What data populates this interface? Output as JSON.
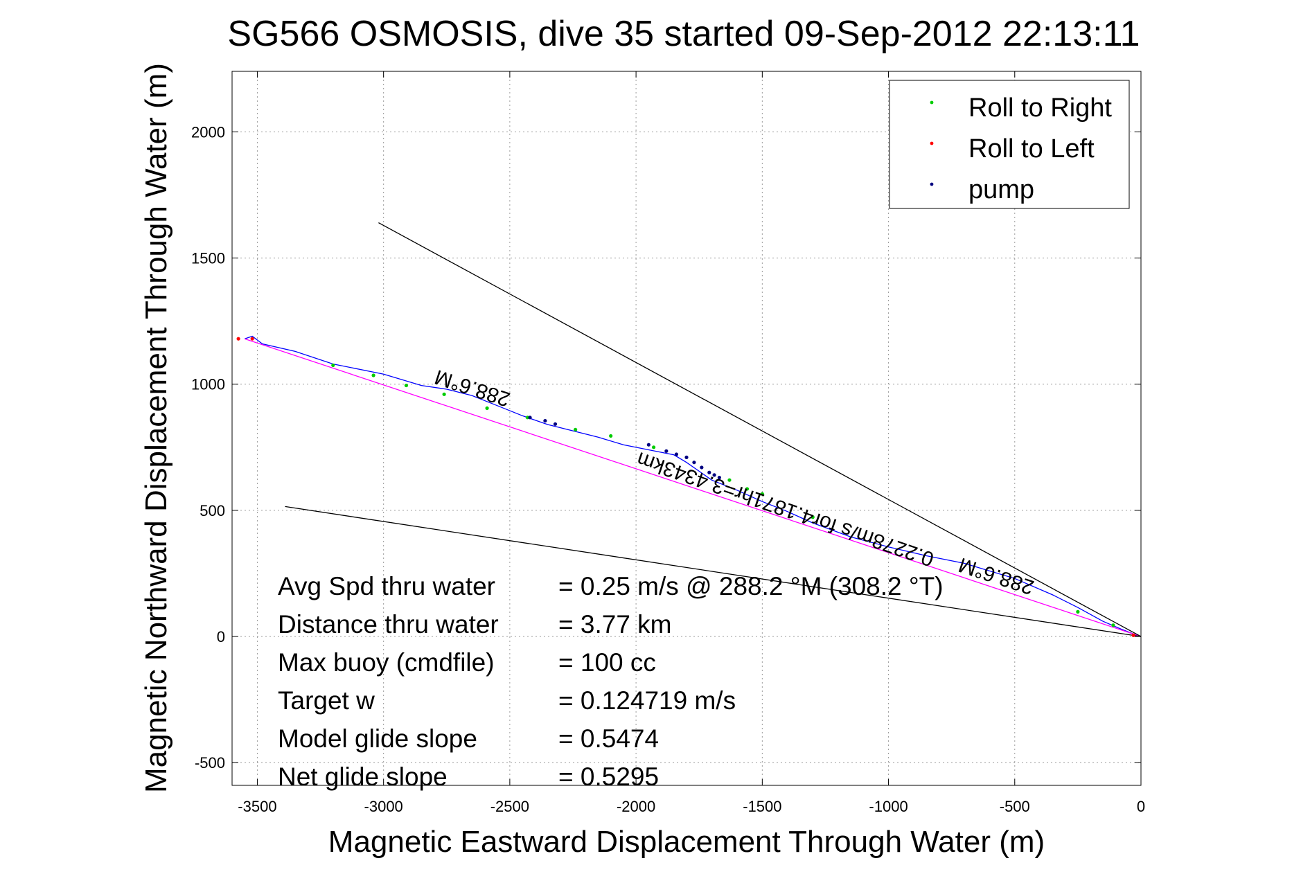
{
  "chart_data": {
    "type": "line",
    "title": "SG566 OSMOSIS, dive 35 started 09-Sep-2012 22:13:11",
    "xlabel": "Magnetic Eastward Displacement Through Water (m)",
    "ylabel": "Magnetic Northward Displacement Through Water (m)",
    "xlim": [
      -3600,
      0
    ],
    "ylim": [
      -590,
      2240
    ],
    "xticks": [
      -3500,
      -3000,
      -2500,
      -2000,
      -1500,
      -1000,
      -500,
      0
    ],
    "xtick_labels": [
      "-3500",
      "-3000",
      "-2500",
      "-2000",
      "-1500",
      "-1000",
      "-500",
      "0"
    ],
    "yticks": [
      -500,
      0,
      500,
      1000,
      1500,
      2000
    ],
    "ytick_labels": [
      "-500",
      "0",
      "500",
      "1000",
      "1500",
      "2000"
    ],
    "grid": true,
    "legend_position": "top-right",
    "legend": [
      {
        "label": "Roll to Right",
        "color": "#00cc00"
      },
      {
        "label": "Roll to Left",
        "color": "#ff0000"
      },
      {
        "label": "pump",
        "color": "#000080"
      }
    ],
    "series": [
      {
        "name": "track",
        "color": "#0000ff",
        "x": [
          -3550,
          -3520,
          -3480,
          -3350,
          -3200,
          -3000,
          -2850,
          -2750,
          -2650,
          -2550,
          -2450,
          -2350,
          -2250,
          -2150,
          -2050,
          -1950,
          -1850,
          -1800,
          -1750,
          -1700,
          -1600,
          -1500,
          -1400,
          -1300,
          -1150,
          -1000,
          -850,
          -700,
          -500,
          -350,
          -250,
          -150,
          -80,
          -30,
          0
        ],
        "y": [
          1180,
          1190,
          1160,
          1130,
          1080,
          1040,
          995,
          980,
          955,
          915,
          875,
          840,
          815,
          790,
          760,
          740,
          720,
          690,
          655,
          620,
          580,
          535,
          495,
          450,
          395,
          355,
          320,
          290,
          230,
          165,
          115,
          60,
          30,
          10,
          0
        ]
      },
      {
        "name": "straight-line",
        "color": "#ff00ff",
        "x": [
          -3550,
          0
        ],
        "y": [
          1180,
          0
        ]
      },
      {
        "name": "heading-line-upper",
        "color": "#000000",
        "x": [
          -3020,
          0
        ],
        "y": [
          1640,
          0
        ]
      },
      {
        "name": "heading-line-lower",
        "color": "#000000",
        "x": [
          -3390,
          0
        ],
        "y": [
          515,
          0
        ]
      }
    ],
    "points": {
      "roll_right": {
        "x": [
          -3200,
          -3040,
          -2910,
          -2760,
          -2590,
          -2430,
          -2240,
          -2100,
          -1930,
          -1630,
          -1560,
          -1500,
          -1300,
          -250,
          -110
        ],
        "y": [
          1075,
          1035,
          995,
          960,
          905,
          868,
          820,
          795,
          750,
          620,
          585,
          565,
          473,
          98,
          45
        ]
      },
      "roll_left": {
        "x": [
          -3575,
          -3520,
          -30
        ],
        "y": [
          1180,
          1180,
          5
        ]
      },
      "pump": {
        "x": [
          -2420,
          -2360,
          -2320,
          -1950,
          -1880,
          -1840,
          -1800,
          -1770,
          -1740,
          -1710,
          -1690,
          -1670
        ],
        "y": [
          868,
          855,
          842,
          760,
          735,
          722,
          710,
          690,
          670,
          650,
          640,
          630
        ]
      }
    },
    "annotations": {
      "heading_mid": "288.6°M",
      "heading_end": "288.6°M",
      "distance_label": "0.2278m/s for4.1871hr=3.4343km",
      "stats": [
        {
          "label": "Avg Spd thru water",
          "value": "=  0.25 m/s @ 288.2 °M (308.2 °T)"
        },
        {
          "label": "Distance thru water",
          "value": "=  3.77 km"
        },
        {
          "label": "Max buoy (cmdfile)",
          "value": "= 100 cc"
        },
        {
          "label": "Target w",
          "value": "= 0.124719 m/s"
        },
        {
          "label": "Model glide slope",
          "value": "= 0.5474"
        },
        {
          "label": "Net glide slope",
          "value": "= 0.5295"
        }
      ]
    }
  }
}
